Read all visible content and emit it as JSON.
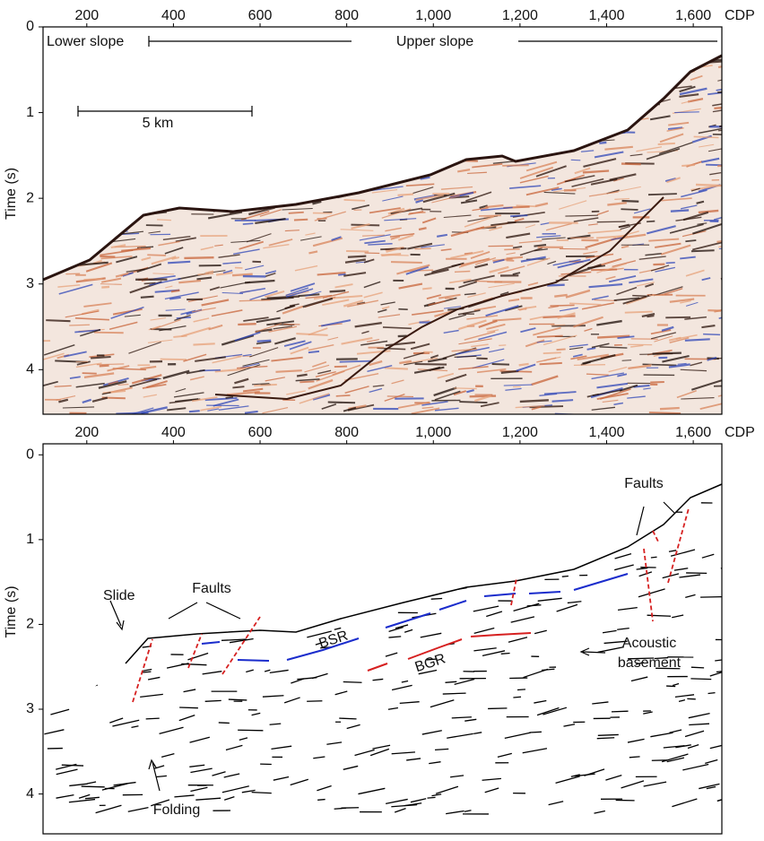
{
  "top_panel": {
    "x_axis_label": "CDP",
    "xlim": [
      99,
      1666
    ],
    "x_ticks": [
      {
        "value": 200,
        "label": "200"
      },
      {
        "value": 400,
        "label": "400"
      },
      {
        "value": 600,
        "label": "600"
      },
      {
        "value": 800,
        "label": "800"
      },
      {
        "value": 1000,
        "label": "1,000"
      },
      {
        "value": 1200,
        "label": "1,200"
      },
      {
        "value": 1400,
        "label": "1,400"
      },
      {
        "value": 1600,
        "label": "1,600"
      }
    ],
    "y_axis_label": "Time (s)",
    "ylim": [
      0,
      4.52
    ],
    "y_ticks": [
      0,
      1,
      2,
      3,
      4
    ],
    "annotations": {
      "lower_slope": "Lower slope",
      "upper_slope": "Upper slope",
      "scale_bar": "5 km"
    }
  },
  "bottom_panel": {
    "x_axis_label": "CDP",
    "xlim": [
      99,
      1666
    ],
    "x_ticks": [
      {
        "value": 200,
        "label": "200"
      },
      {
        "value": 400,
        "label": "400"
      },
      {
        "value": 600,
        "label": "600"
      },
      {
        "value": 800,
        "label": "800"
      },
      {
        "value": 1000,
        "label": "1,000"
      },
      {
        "value": 1200,
        "label": "1,200"
      },
      {
        "value": 1400,
        "label": "1,400"
      },
      {
        "value": 1600,
        "label": "1,600"
      }
    ],
    "y_axis_label": "Time (s)",
    "ylim": [
      -0.13,
      4.47
    ],
    "y_ticks": [
      0,
      1,
      2,
      3,
      4
    ],
    "annotations": {
      "slide": "Slide",
      "faults_left": "Faults",
      "faults_right": "Faults",
      "bsr": "BSR",
      "bgr": "BGR",
      "acoustic_basement": [
        "Acoustic",
        "basement"
      ],
      "folding": "Folding"
    }
  }
}
